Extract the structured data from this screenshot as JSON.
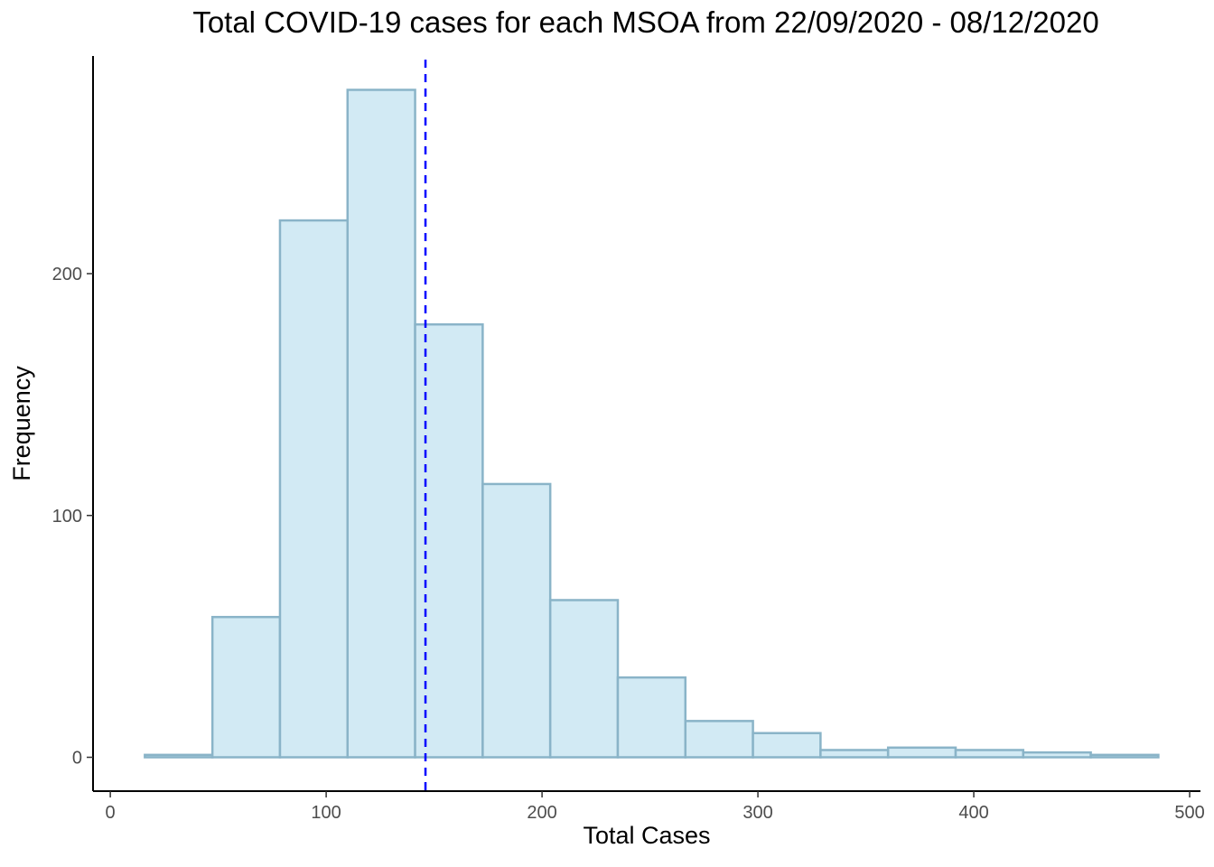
{
  "chart_data": {
    "type": "bar",
    "title": "Total COVID-19 cases for each MSOA from 22/09/2020 - 08/12/2020",
    "xlabel": "Total Cases",
    "ylabel": "Frequency",
    "xlim": [
      -8,
      505
    ],
    "ylim": [
      -14,
      290
    ],
    "x_ticks": [
      "0",
      "100",
      "200",
      "300",
      "400",
      "500"
    ],
    "y_ticks": [
      "0",
      "100",
      "200"
    ],
    "grid": false,
    "bins": [
      {
        "start": 16,
        "end": 47.3,
        "count": 1
      },
      {
        "start": 47.3,
        "end": 78.6,
        "count": 58
      },
      {
        "start": 78.6,
        "end": 109.9,
        "count": 222
      },
      {
        "start": 109.9,
        "end": 141.2,
        "count": 276
      },
      {
        "start": 141.2,
        "end": 172.5,
        "count": 179
      },
      {
        "start": 172.5,
        "end": 203.8,
        "count": 113
      },
      {
        "start": 203.8,
        "end": 235.1,
        "count": 65
      },
      {
        "start": 235.1,
        "end": 266.4,
        "count": 33
      },
      {
        "start": 266.4,
        "end": 297.7,
        "count": 15
      },
      {
        "start": 297.7,
        "end": 329.0,
        "count": 10
      },
      {
        "start": 329.0,
        "end": 360.3,
        "count": 3
      },
      {
        "start": 360.3,
        "end": 391.6,
        "count": 4
      },
      {
        "start": 391.6,
        "end": 422.9,
        "count": 3
      },
      {
        "start": 422.9,
        "end": 454.2,
        "count": 2
      },
      {
        "start": 454.2,
        "end": 485.5,
        "count": 1
      }
    ],
    "mean_line": {
      "x": 146,
      "style": "dashed",
      "color": "#0000ff"
    },
    "bar_fill": "#d2eaf4",
    "bar_stroke": "#8ab4c8"
  }
}
